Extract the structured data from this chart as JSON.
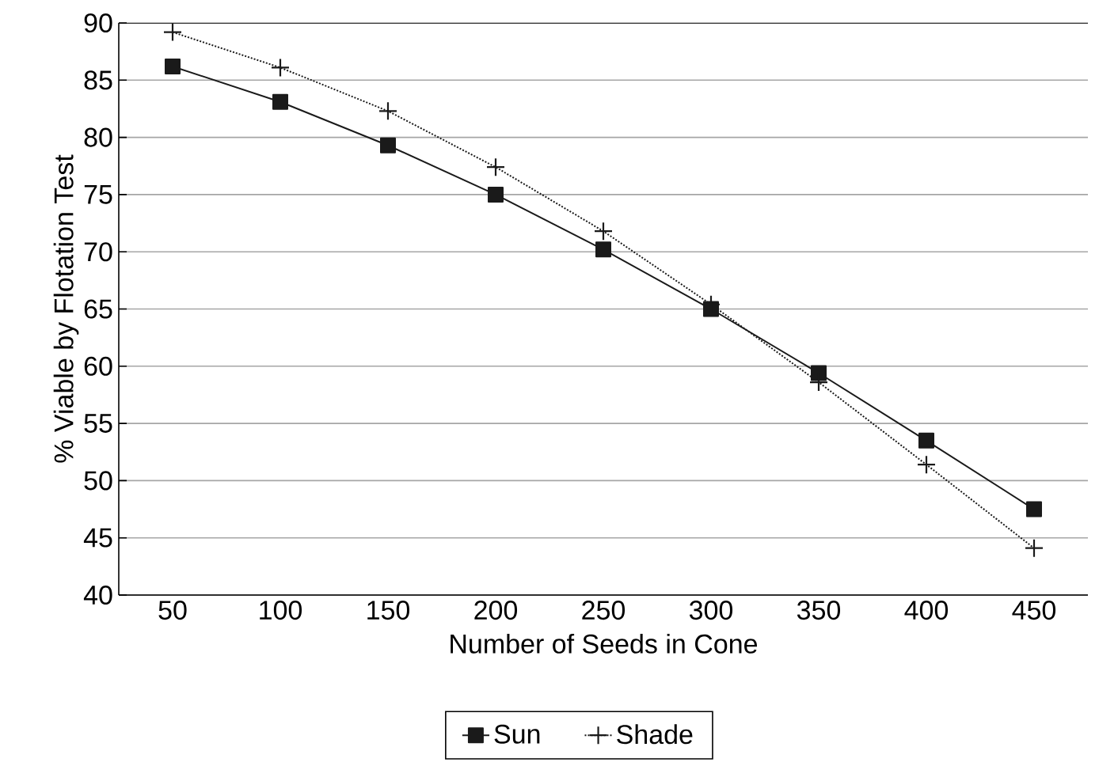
{
  "chart_data": {
    "type": "line",
    "xlabel": "Number of Seeds in Cone",
    "ylabel": "% Viable by Flotation Test",
    "x": [
      50,
      100,
      150,
      200,
      250,
      300,
      350,
      400,
      450
    ],
    "series": [
      {
        "name": "Sun",
        "color": "#1a1a1a",
        "marker": "square",
        "line_style": "solid",
        "values": [
          86.2,
          83.1,
          79.3,
          75.0,
          70.2,
          65.0,
          59.4,
          53.5,
          47.5
        ]
      },
      {
        "name": "Shade",
        "color": "#1a1a1a",
        "marker": "cross",
        "line_style": "dotted",
        "values": [
          89.2,
          86.1,
          82.3,
          77.4,
          71.8,
          65.4,
          58.6,
          51.4,
          44.1
        ]
      }
    ],
    "xlim": [
      25,
      475
    ],
    "ylim": [
      40,
      90
    ],
    "xticks": [
      50,
      100,
      150,
      200,
      250,
      300,
      350,
      400,
      450
    ],
    "yticks": [
      40,
      45,
      50,
      55,
      60,
      65,
      70,
      75,
      80,
      85,
      90
    ],
    "grid": "y",
    "legend": "bottom"
  }
}
